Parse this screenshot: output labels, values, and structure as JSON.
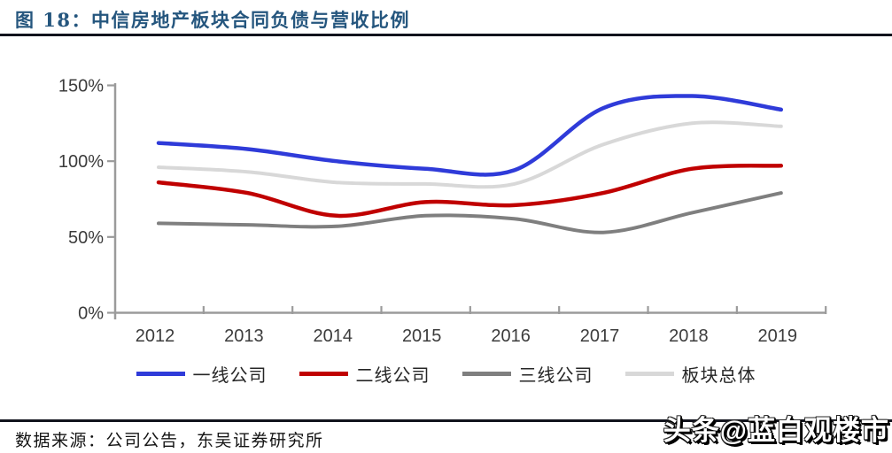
{
  "header": {
    "title": "图 18：中信房地产板块合同负债与营收比例"
  },
  "footer": {
    "source": "数据来源：公司公告，东吴证券研究所",
    "watermark": "头条@蓝白观楼市"
  },
  "chart_data": {
    "type": "line",
    "title": "中信房地产板块合同负债与营收比例",
    "categories": [
      "2012",
      "2013",
      "2014",
      "2015",
      "2016",
      "2017",
      "2018",
      "2019"
    ],
    "unit": "%",
    "series": [
      {
        "name": "一线公司",
        "color": "#2f3bd9",
        "line_width": 4.5,
        "values": [
          112,
          108,
          100,
          95,
          94,
          135,
          143,
          134
        ]
      },
      {
        "name": "二线公司",
        "color": "#c00000",
        "line_width": 4.5,
        "values": [
          86,
          79,
          64,
          73,
          71,
          79,
          95,
          97
        ]
      },
      {
        "name": "三线公司",
        "color": "#7f7f7f",
        "line_width": 4,
        "values": [
          59,
          58,
          57,
          64,
          62,
          53,
          66,
          79
        ]
      },
      {
        "name": "板块总体",
        "color": "#d8d8d8",
        "line_width": 4,
        "values": [
          96,
          93,
          86,
          85,
          85,
          111,
          125,
          123
        ]
      }
    ],
    "y_ticks": [
      {
        "value": 0,
        "label": "0%"
      },
      {
        "value": 50,
        "label": "50%"
      },
      {
        "value": 100,
        "label": "100%"
      },
      {
        "value": 150,
        "label": "150%"
      }
    ],
    "ylim": [
      0,
      150
    ],
    "grid": false,
    "smooth": true,
    "legend_position": "bottom",
    "axis_color": "#9b9b9b",
    "tick_label_color": "#3c3c3c"
  }
}
